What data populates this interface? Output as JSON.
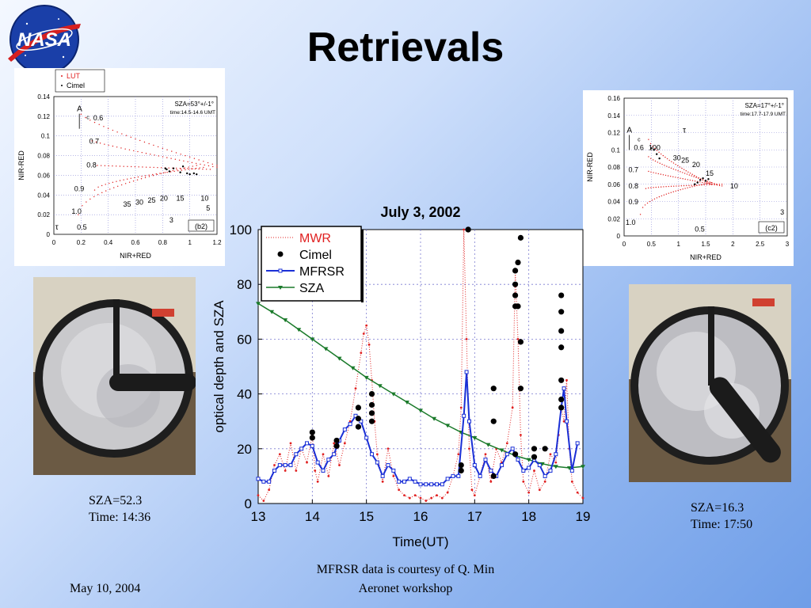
{
  "slide": {
    "title": "Retrievals",
    "footer_date": "May 10, 2004",
    "footer_event": "Aeronet workshop",
    "credit": "MFRSR data is courtesy of Q. Min",
    "logo_text": "NASA"
  },
  "left_photo": {
    "caption_sza": "SZA=52.3",
    "caption_time": "Time: 14:36"
  },
  "right_photo": {
    "caption_sza": "SZA=16.3",
    "caption_time": "Time: 17:50"
  },
  "colors": {
    "mwr": "#e02020",
    "cimel": "#000000",
    "mfrsr": "#1a2fd6",
    "sza": "#1a7a2a",
    "lut": "#e02020"
  },
  "chart_data": [
    {
      "type": "line",
      "title": "July 3, 2002",
      "xlabel": "Time(UT)",
      "ylabel": "optical depth and SZA",
      "xlim": [
        13,
        19
      ],
      "ylim": [
        0,
        100
      ],
      "xticks": [
        "13",
        "14",
        "15",
        "16",
        "17",
        "18",
        "19"
      ],
      "yticks": [
        "0",
        "20",
        "40",
        "60",
        "80",
        "100"
      ],
      "legend": [
        "MWR",
        "Cimel",
        "MFRSR",
        "SZA"
      ],
      "legend_position": "top-left",
      "series": [
        {
          "name": "MFRSR",
          "marker": "square",
          "x": [
            13,
            13.1,
            13.2,
            13.3,
            13.4,
            13.5,
            13.6,
            13.7,
            13.8,
            13.9,
            14,
            14.1,
            14.2,
            14.3,
            14.4,
            14.5,
            14.6,
            14.7,
            14.8,
            14.9,
            15,
            15.1,
            15.2,
            15.3,
            15.4,
            15.5,
            15.6,
            15.7,
            15.8,
            15.9,
            16,
            16.1,
            16.2,
            16.3,
            16.4,
            16.5,
            16.6,
            16.7,
            16.8,
            16.85,
            16.9,
            17,
            17.1,
            17.2,
            17.3,
            17.4,
            17.5,
            17.6,
            17.7,
            17.8,
            17.9,
            18,
            18.1,
            18.2,
            18.3,
            18.4,
            18.5,
            18.6,
            18.65,
            18.7,
            18.8,
            18.9
          ],
          "y": [
            9,
            8,
            8,
            12,
            14,
            14,
            14,
            18,
            20,
            22,
            21,
            15,
            12,
            16,
            18,
            23,
            27,
            29,
            32,
            30,
            24,
            18,
            15,
            10,
            14,
            12,
            8,
            8,
            9,
            8,
            7,
            7,
            7,
            7,
            7,
            9,
            10,
            10,
            32,
            48,
            30,
            14,
            10,
            16,
            12,
            10,
            14,
            18,
            20,
            16,
            12,
            13,
            16,
            14,
            10,
            12,
            18,
            35,
            42,
            30,
            12,
            22
          ]
        },
        {
          "name": "SZA",
          "marker": "triangle-down",
          "x": [
            13,
            13.25,
            13.5,
            13.75,
            14,
            14.25,
            14.5,
            14.75,
            15,
            15.25,
            15.5,
            15.75,
            16,
            16.25,
            16.5,
            16.75,
            17,
            17.25,
            17.5,
            17.75,
            18,
            18.25,
            18.5,
            18.75,
            19
          ],
          "y": [
            73,
            70,
            67,
            63.5,
            60,
            56.5,
            53,
            49.5,
            46,
            43,
            40,
            37,
            34,
            31,
            28.5,
            26,
            24,
            21.5,
            19.5,
            17.5,
            16,
            14.5,
            13.5,
            13,
            13.5
          ]
        },
        {
          "name": "MWR",
          "marker": "dot",
          "x": [
            13,
            13.1,
            13.2,
            13.3,
            13.4,
            13.5,
            13.6,
            13.7,
            13.8,
            13.9,
            14,
            14.05,
            14.1,
            14.2,
            14.3,
            14.4,
            14.5,
            14.6,
            14.7,
            14.8,
            14.9,
            14.95,
            15,
            15.05,
            15.1,
            15.15,
            15.2,
            15.3,
            15.4,
            15.5,
            15.6,
            15.7,
            15.8,
            15.9,
            16,
            16.1,
            16.2,
            16.3,
            16.4,
            16.5,
            16.6,
            16.7,
            16.75,
            16.8,
            16.85,
            16.9,
            16.95,
            17,
            17.1,
            17.2,
            17.3,
            17.4,
            17.5,
            17.6,
            17.7,
            17.75,
            17.8,
            17.85,
            17.9,
            18,
            18.1,
            18.2,
            18.3,
            18.4,
            18.5,
            18.55,
            18.6,
            18.65,
            18.7,
            18.75,
            18.8,
            18.9,
            19
          ],
          "y": [
            3,
            1,
            5,
            14,
            18,
            12,
            22,
            12,
            20,
            15,
            25,
            12,
            8,
            18,
            10,
            22,
            14,
            22,
            30,
            42,
            55,
            62,
            65,
            58,
            45,
            30,
            18,
            8,
            20,
            10,
            5,
            3,
            2,
            3,
            2,
            1,
            2,
            3,
            2,
            4,
            10,
            18,
            35,
            100,
            60,
            20,
            5,
            3,
            10,
            18,
            8,
            20,
            15,
            22,
            35,
            85,
            60,
            25,
            8,
            4,
            12,
            5,
            8,
            18,
            15,
            25,
            35,
            30,
            45,
            20,
            8,
            4,
            2
          ]
        },
        {
          "name": "Cimel",
          "marker": "circle",
          "x": [
            14,
            14,
            14.45,
            14.45,
            14.85,
            14.85,
            14.85,
            15.1,
            15.1,
            15.1,
            15.1,
            16.75,
            16.75,
            16.88,
            16.88,
            17.35,
            17.35,
            17.35,
            17.75,
            17.75,
            17.75,
            17.75,
            17.75,
            17.8,
            17.8,
            17.85,
            17.85,
            17.85,
            18.1,
            18.1,
            18.3,
            18.6,
            18.6,
            18.6,
            18.6,
            18.6,
            18.6,
            18.6
          ],
          "y": [
            24,
            26,
            21,
            23,
            28,
            31,
            35,
            30,
            33,
            36,
            40,
            12,
            14,
            100,
            100,
            42,
            30,
            10,
            85,
            80,
            76,
            72,
            18,
            88,
            72,
            97,
            59,
            42,
            20,
            17,
            20,
            76,
            70,
            63,
            57,
            45,
            38,
            35
          ]
        }
      ]
    },
    {
      "type": "scatter",
      "panel_label": "(b2)",
      "annotation_sza": "SZA=53",
      "annotation_sza_unit": "+/-1",
      "annotation_time": "time:14.5-14.6 UMT",
      "legend": [
        "LUT",
        "Cimel"
      ],
      "legend_position": "top-left",
      "xlabel": "NIR+RED",
      "ylabel": "NIR-RED",
      "xlim": [
        0,
        1.2
      ],
      "ylim": [
        0,
        0.14
      ],
      "xticks": [
        "0",
        "0.2",
        "0.4",
        "0.6",
        "0.8",
        "1",
        "1.2"
      ],
      "yticks": [
        "0",
        "0.02",
        "0.04",
        "0.06",
        "0.08",
        "0.1",
        "0.12",
        "0.14"
      ],
      "curve_labels": [
        "0.6",
        "0.7",
        "0.8",
        "0.9",
        "1.0"
      ],
      "tau_labels": [
        "35",
        "30",
        "25",
        "20",
        "15",
        "10",
        "5",
        "3"
      ],
      "marker_A": "A",
      "marker_c": "c",
      "marker_tau": "τ",
      "marker_tau_value": "0.5",
      "series": [
        {
          "name": "Cimel",
          "x": [
            0.82,
            0.83,
            0.85,
            0.88,
            0.93,
            0.95,
            0.98,
            1.0,
            1.03,
            1.05
          ],
          "y": [
            0.067,
            0.066,
            0.064,
            0.067,
            0.063,
            0.069,
            0.062,
            0.061,
            0.062,
            0.061
          ]
        }
      ]
    },
    {
      "type": "scatter",
      "panel_label": "(c2)",
      "annotation_sza": "SZA=17",
      "annotation_sza_unit": "+/-1",
      "annotation_time": "time:17.7-17.9 UMT",
      "xlabel": "NIR+RED",
      "ylabel": "NIR-RED",
      "xlim": [
        0,
        3
      ],
      "ylim": [
        0,
        0.16
      ],
      "xticks": [
        "0",
        "0.5",
        "1",
        "1.5",
        "2",
        "2.5",
        "3"
      ],
      "yticks": [
        "0",
        "0.02",
        "0.04",
        "0.06",
        "0.08",
        "0.1",
        "0.12",
        "0.14",
        "0.16"
      ],
      "curve_labels": [
        "0.6",
        "0.7",
        "0.8",
        "0.9",
        "1.0"
      ],
      "tau_labels": [
        "100",
        "30",
        "25",
        "20",
        "15",
        "10",
        "3"
      ],
      "marker_A": "A",
      "marker_c": "c",
      "marker_tau": "τ",
      "marker_tau_value": "0.5",
      "series": [
        {
          "name": "Cimel",
          "x": [
            0.5,
            0.55,
            0.6,
            0.65,
            1.4,
            1.45,
            1.5,
            1.55,
            1.3,
            1.35
          ],
          "y": [
            0.102,
            0.1,
            0.095,
            0.09,
            0.065,
            0.067,
            0.064,
            0.066,
            0.06,
            0.062
          ]
        }
      ]
    }
  ]
}
